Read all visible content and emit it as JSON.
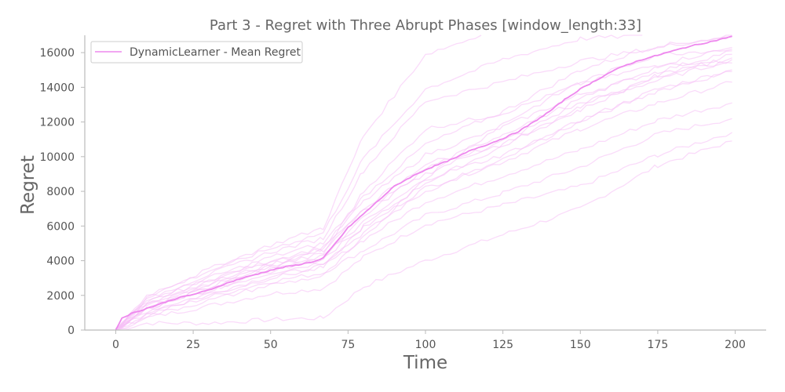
{
  "chart_data": {
    "type": "line",
    "title": "Part 3 - Regret with Three Abrupt Phases [window_length:33]",
    "xlabel": "Time",
    "ylabel": "Regret",
    "xlim": [
      -10,
      210
    ],
    "ylim": [
      0,
      17000
    ],
    "xticks": [
      0,
      25,
      50,
      75,
      100,
      125,
      150,
      175,
      200
    ],
    "yticks": [
      0,
      2000,
      4000,
      6000,
      8000,
      10000,
      12000,
      14000,
      16000
    ],
    "grid": false,
    "legend": {
      "placement": "top-left",
      "entries": [
        "DynamicLearner - Mean Regret"
      ]
    },
    "colors": {
      "mean": "#ee88ee",
      "runs": "#f6bdf6",
      "spine": "#bbbbbb",
      "text": "#666666"
    },
    "mean_series": {
      "name": "DynamicLearner - Mean Regret",
      "x": [
        0,
        2,
        5,
        10,
        15,
        20,
        25,
        30,
        35,
        40,
        45,
        50,
        55,
        60,
        65,
        67,
        70,
        75,
        80,
        85,
        90,
        95,
        100,
        105,
        110,
        115,
        120,
        125,
        130,
        135,
        140,
        145,
        150,
        155,
        160,
        165,
        170,
        175,
        180,
        185,
        190,
        195,
        199
      ],
      "y": [
        0,
        700,
        950,
        1250,
        1550,
        1850,
        2050,
        2300,
        2650,
        2950,
        3200,
        3450,
        3650,
        3800,
        4000,
        4150,
        4800,
        5900,
        6700,
        7500,
        8300,
        8800,
        9250,
        9600,
        9950,
        10400,
        10700,
        11050,
        11450,
        12000,
        12600,
        13300,
        13900,
        14400,
        14900,
        15300,
        15600,
        15850,
        16100,
        16350,
        16550,
        16750,
        16950
      ]
    },
    "runs": [
      {
        "x": [
          0,
          10,
          30,
          50,
          67,
          80,
          100,
          125,
          150,
          175,
          199
        ],
        "y": [
          0,
          400,
          400,
          600,
          700,
          2500,
          4000,
          5500,
          7000,
          9500,
          10900
        ]
      },
      {
        "x": [
          0,
          10,
          30,
          50,
          67,
          80,
          100,
          125,
          150,
          175,
          199
        ],
        "y": [
          0,
          700,
          1400,
          2100,
          2400,
          4200,
          6100,
          7200,
          8300,
          10100,
          11400
        ]
      },
      {
        "x": [
          0,
          10,
          30,
          50,
          67,
          80,
          100,
          125,
          150,
          175,
          199
        ],
        "y": [
          0,
          900,
          1900,
          2800,
          3300,
          4600,
          6600,
          7900,
          9400,
          11300,
          12200
        ]
      },
      {
        "x": [
          0,
          10,
          30,
          50,
          67,
          80,
          100,
          125,
          150,
          175,
          199
        ],
        "y": [
          0,
          1100,
          2100,
          3100,
          3700,
          5200,
          7400,
          8900,
          10400,
          12100,
          13100
        ]
      },
      {
        "x": [
          0,
          10,
          30,
          50,
          67,
          80,
          100,
          125,
          150,
          175,
          199
        ],
        "y": [
          0,
          1300,
          2400,
          3500,
          4200,
          5900,
          8200,
          9700,
          11600,
          13100,
          14300
        ]
      },
      {
        "x": [
          0,
          10,
          30,
          50,
          67,
          80,
          100,
          125,
          150,
          175,
          199
        ],
        "y": [
          0,
          1200,
          2300,
          3300,
          3900,
          5600,
          8000,
          9800,
          12100,
          13900,
          15000
        ]
      },
      {
        "x": [
          0,
          10,
          30,
          50,
          67,
          80,
          100,
          125,
          150,
          175,
          199
        ],
        "y": [
          0,
          1500,
          2700,
          3800,
          4600,
          6900,
          9000,
          10900,
          13100,
          14400,
          15600
        ]
      },
      {
        "x": [
          0,
          10,
          30,
          50,
          67,
          80,
          100,
          125,
          150,
          175,
          199
        ],
        "y": [
          0,
          1000,
          2000,
          3000,
          3600,
          6000,
          8500,
          10600,
          12900,
          14600,
          15900
        ]
      },
      {
        "x": [
          0,
          10,
          30,
          50,
          67,
          80,
          100,
          125,
          150,
          175,
          199
        ],
        "y": [
          0,
          1600,
          2900,
          4000,
          4800,
          7400,
          10100,
          11700,
          13600,
          14900,
          16100
        ]
      },
      {
        "x": [
          0,
          10,
          30,
          50,
          67,
          80,
          100,
          125,
          150,
          175,
          199
        ],
        "y": [
          0,
          1400,
          2600,
          3700,
          4400,
          8000,
          11600,
          12500,
          14200,
          15300,
          16300
        ]
      },
      {
        "x": [
          0,
          10,
          30,
          50,
          67,
          80,
          100,
          125,
          150,
          175,
          199
        ],
        "y": [
          0,
          1700,
          3000,
          4200,
          5000,
          7700,
          10700,
          12600,
          15000,
          16400,
          16900
        ]
      },
      {
        "x": [
          0,
          10,
          30,
          50,
          67,
          80,
          100,
          125,
          150,
          175,
          199
        ],
        "y": [
          0,
          1800,
          3200,
          4500,
          5300,
          9200,
          13200,
          14300,
          15500,
          16300,
          17000
        ]
      },
      {
        "x": [
          0,
          10,
          30,
          50,
          67,
          80,
          100,
          125,
          150,
          170
        ],
        "y": [
          0,
          1900,
          3400,
          4700,
          5600,
          9900,
          13900,
          15600,
          16800,
          17000
        ]
      },
      {
        "x": [
          0,
          10,
          30,
          50,
          67,
          80,
          100,
          118
        ],
        "y": [
          0,
          2000,
          3500,
          4900,
          5900,
          11200,
          15900,
          17000
        ]
      },
      {
        "x": [
          0,
          10,
          30,
          50,
          67,
          80,
          100,
          125,
          150,
          175,
          199
        ],
        "y": [
          0,
          1200,
          2500,
          3600,
          4300,
          6200,
          8700,
          10100,
          12000,
          13800,
          14900
        ]
      },
      {
        "x": [
          0,
          10,
          30,
          50,
          67,
          80,
          100,
          125,
          150,
          175,
          199
        ],
        "y": [
          0,
          1300,
          2300,
          3400,
          4100,
          6500,
          9300,
          11300,
          13300,
          15200,
          15400
        ]
      },
      {
        "x": [
          0,
          10,
          30,
          50,
          67,
          80,
          100,
          125,
          150,
          175,
          199
        ],
        "y": [
          0,
          800,
          1700,
          2600,
          3100,
          5300,
          8800,
          11900,
          14300,
          15900,
          16200
        ]
      },
      {
        "x": [
          0,
          10,
          30,
          50,
          67,
          80,
          100,
          125,
          150,
          175,
          199
        ],
        "y": [
          0,
          1500,
          2800,
          3900,
          4700,
          7000,
          9600,
          10700,
          12700,
          14700,
          15700
        ]
      }
    ]
  }
}
